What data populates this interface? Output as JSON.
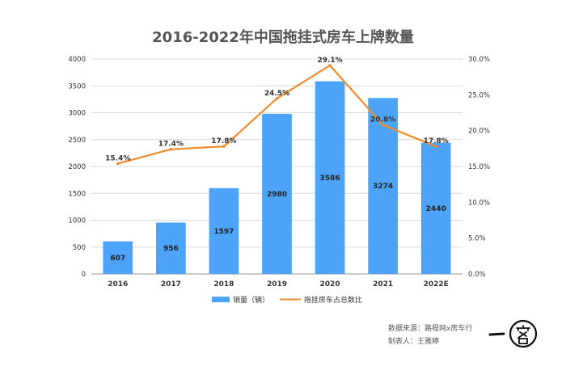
{
  "chart_data": {
    "type": "bar",
    "title": "2016-2022年中国拖挂式房车上牌数量",
    "categories": [
      "2016",
      "2017",
      "2018",
      "2019",
      "2020",
      "2021",
      "2022E"
    ],
    "series": [
      {
        "name": "销量（辆）",
        "type": "bar",
        "axis": "left",
        "color": "#4da3f7",
        "values": [
          607,
          956,
          1597,
          2980,
          3586,
          3274,
          2440
        ],
        "labels": [
          "607",
          "956",
          "1597",
          "2980",
          "3586",
          "3274",
          "2440"
        ]
      },
      {
        "name": "拖挂房车占总数比",
        "type": "line",
        "axis": "right",
        "color": "#f08c2c",
        "values": [
          15.4,
          17.4,
          17.8,
          24.5,
          29.1,
          20.8,
          17.8
        ],
        "labels": [
          "15.4%",
          "17.4%",
          "17.8%",
          "24.5%",
          "29.1%",
          "20.8%",
          "17.8%"
        ]
      }
    ],
    "y_left": {
      "min": 0,
      "max": 4000,
      "ticks": [
        0,
        500,
        1000,
        1500,
        2000,
        2500,
        3000,
        3500,
        4000
      ],
      "tick_labels": [
        "0",
        "500",
        "1000",
        "1500",
        "2000",
        "2500",
        "3000",
        "3500",
        "4000"
      ]
    },
    "y_right": {
      "min": 0,
      "max": 30,
      "ticks": [
        0,
        5,
        10,
        15,
        20,
        25,
        30
      ],
      "tick_labels": [
        "0.0%",
        "5.0%",
        "10.0%",
        "15.0%",
        "20.0%",
        "25.0%",
        "30.0%"
      ]
    },
    "grid": true,
    "legend": "bottom-center"
  },
  "source": {
    "line1": "数据来源：路程网x房车行",
    "line2": "制表人：王雅婷"
  },
  "logo": {
    "text": "一客"
  }
}
